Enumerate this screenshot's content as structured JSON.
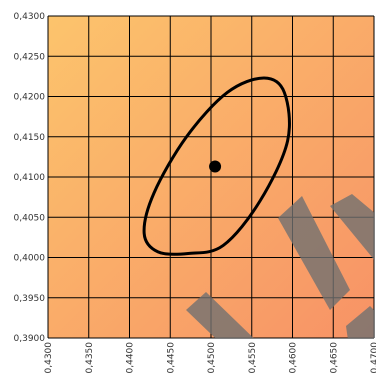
{
  "chart_data": {
    "type": "scatter",
    "title": "",
    "xlabel": "",
    "ylabel": "",
    "xlim": [
      0.43,
      0.47
    ],
    "ylim": [
      0.39,
      0.43
    ],
    "x_ticks": [
      "0,4300",
      "0,4350",
      "0,4400",
      "0,4450",
      "0,4500",
      "0,4550",
      "0,4600",
      "0,4650",
      "0,4700"
    ],
    "y_ticks": [
      "0,4300",
      "0,4250",
      "0,4200",
      "0,4150",
      "0,4100",
      "0,4050",
      "0,4000",
      "0,3950",
      "0,3900"
    ],
    "x_tick_values": [
      0.43,
      0.435,
      0.44,
      0.445,
      0.45,
      0.455,
      0.46,
      0.465,
      0.47
    ],
    "y_tick_values": [
      0.43,
      0.425,
      0.42,
      0.415,
      0.41,
      0.405,
      0.4,
      0.395,
      0.39
    ],
    "grid": true,
    "point": {
      "x": 0.4505,
      "y": 0.4113
    },
    "ellipse": {
      "center": {
        "x": 0.4505,
        "y": 0.4113
      },
      "points": [
        [
          0.4472,
          0.4005
        ],
        [
          0.4515,
          0.4015
        ],
        [
          0.456,
          0.407
        ],
        [
          0.4594,
          0.4145
        ],
        [
          0.459,
          0.4205
        ],
        [
          0.4565,
          0.4223
        ],
        [
          0.452,
          0.4205
        ],
        [
          0.447,
          0.415
        ],
        [
          0.443,
          0.408
        ],
        [
          0.4418,
          0.403
        ],
        [
          0.4435,
          0.4007
        ]
      ]
    },
    "colors": {
      "background_top_left": "#fcc46c",
      "background_bottom_right": "#f79266",
      "grid": "#000000",
      "marker": "#000000",
      "ellipse": "#000000",
      "watermark": "#707070"
    }
  }
}
